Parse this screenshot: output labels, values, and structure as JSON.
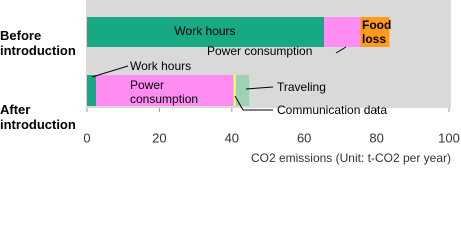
{
  "chart_data": {
    "type": "stacked-barh",
    "categories": [
      "Before introduction",
      "After introduction"
    ],
    "series": [
      {
        "name": "Work hours",
        "color": "#17a884",
        "values": [
          65.5,
          2.5
        ]
      },
      {
        "name": "Power consumption",
        "color": "#ff8cf0",
        "values": [
          10,
          38
        ]
      },
      {
        "name": "Food loss",
        "color": "#ff9a1a",
        "values": [
          8,
          null
        ]
      },
      {
        "name": "Communication data",
        "color": "#ffff66",
        "values": [
          null,
          0.6
        ]
      },
      {
        "name": "Traveling",
        "color": "#9fd1b4",
        "values": [
          null,
          3.7
        ]
      }
    ],
    "xlim": [
      0,
      100
    ],
    "xticks": [
      0,
      20,
      40,
      60,
      80,
      100
    ],
    "xlabel": "CO2 emissions (Unit: t-CO2 per year)"
  }
}
